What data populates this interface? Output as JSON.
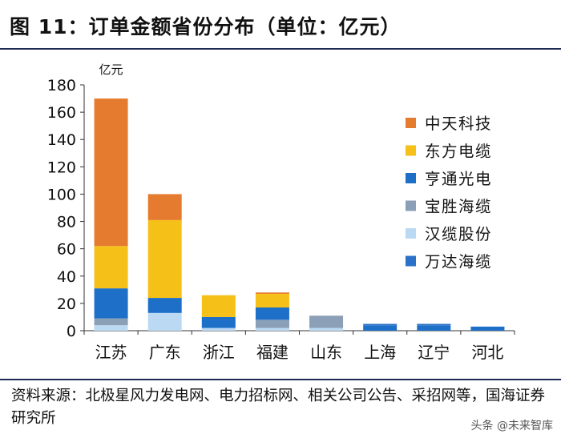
{
  "figure_title": "图 11：订单金额省份分布（单位：亿元）",
  "source_text": "资料来源：北极星风力发电网、电力招标网、相关公司公告、采招网等，国海证券研究所",
  "watermark": "头条 @未来智库",
  "colors": {
    "中天科技": "#e57b2e",
    "东方电缆": "#f5c018",
    "亨通光电": "#1e6fc8",
    "宝胜海缆": "#8b9fb6",
    "汉缆股份": "#bcd9f3",
    "万达海缆": "#2a71c9"
  },
  "chart_data": {
    "type": "bar",
    "stacked": true,
    "title": "图 11：订单金额省份分布（单位：亿元）",
    "unit_label": "亿元",
    "categories": [
      "江苏",
      "广东",
      "浙江",
      "福建",
      "山东",
      "上海",
      "辽宁",
      "河北"
    ],
    "ylim": [
      0,
      180
    ],
    "yticks": [
      0,
      20,
      40,
      60,
      80,
      100,
      120,
      140,
      160,
      180
    ],
    "legend_position": "right",
    "series": [
      {
        "name": "汉缆股份",
        "values": [
          4,
          13,
          2,
          2,
          2,
          0,
          0,
          0
        ]
      },
      {
        "name": "宝胜海缆",
        "values": [
          5,
          0,
          0,
          6,
          9,
          0,
          0,
          0
        ]
      },
      {
        "name": "亨通光电",
        "values": [
          22,
          11,
          8,
          9,
          0,
          4,
          4,
          3
        ]
      },
      {
        "name": "东方电缆",
        "values": [
          31,
          57,
          16,
          10,
          0,
          0,
          0,
          0
        ]
      },
      {
        "name": "中天科技",
        "values": [
          108,
          19,
          0,
          1,
          0,
          0,
          0,
          0
        ]
      },
      {
        "name": "万达海缆",
        "values": [
          0,
          0,
          0,
          0,
          0,
          1,
          1,
          0
        ]
      }
    ],
    "legend_order": [
      "中天科技",
      "东方电缆",
      "亨通光电",
      "宝胜海缆",
      "汉缆股份",
      "万达海缆"
    ]
  }
}
